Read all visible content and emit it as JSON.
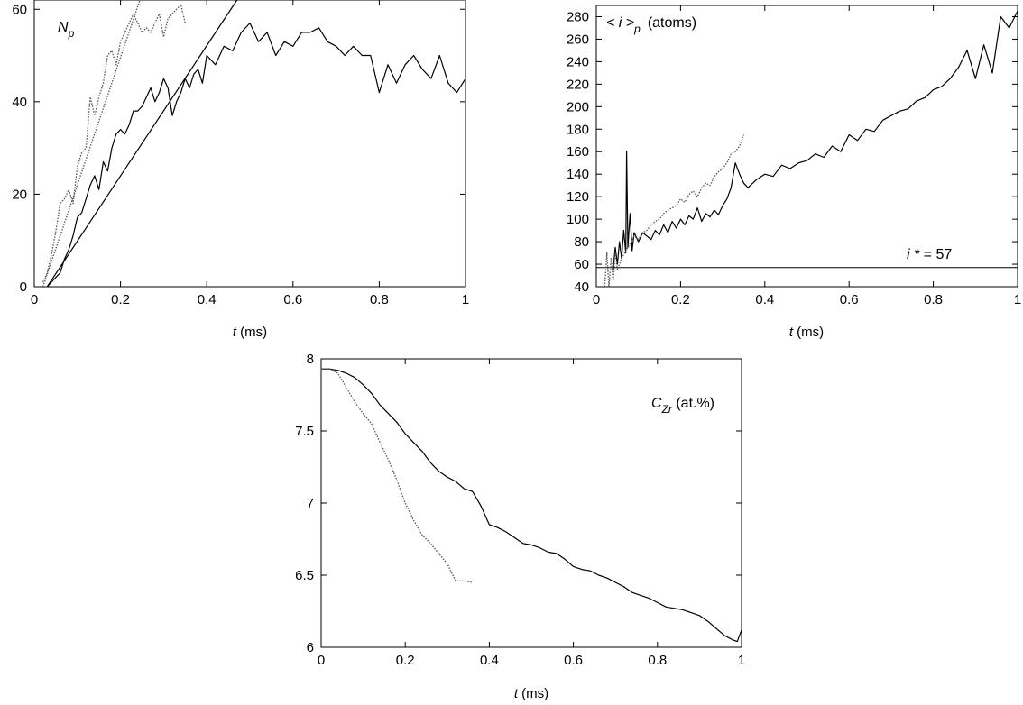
{
  "chart_data": [
    {
      "type": "line",
      "title": "",
      "panel_label_main": "N",
      "panel_label_sub": "p",
      "xlabel_var": "t",
      "xlabel_unit": " (ms)",
      "ylabel": "",
      "xlim": [
        0,
        1
      ],
      "ylim": [
        0,
        62
      ],
      "xticks": [
        "0",
        "0.2",
        "0.4",
        "0.6",
        "0.8",
        "1"
      ],
      "yticks": [
        "0",
        "20",
        "40",
        "60"
      ],
      "series": [
        {
          "style": "solid-noisy",
          "x": [
            0.03,
            0.04,
            0.05,
            0.06,
            0.07,
            0.08,
            0.09,
            0.1,
            0.11,
            0.12,
            0.13,
            0.14,
            0.15,
            0.16,
            0.17,
            0.18,
            0.19,
            0.2,
            0.21,
            0.22,
            0.23,
            0.24,
            0.25,
            0.26,
            0.27,
            0.28,
            0.29,
            0.3,
            0.31,
            0.32,
            0.33,
            0.34,
            0.35,
            0.36,
            0.37,
            0.38,
            0.39,
            0.4,
            0.42,
            0.44,
            0.46,
            0.48,
            0.5,
            0.52,
            0.54,
            0.56,
            0.58,
            0.6,
            0.62,
            0.64,
            0.66,
            0.68,
            0.7,
            0.72,
            0.74,
            0.76,
            0.78,
            0.8,
            0.82,
            0.84,
            0.86,
            0.88,
            0.9,
            0.92,
            0.94,
            0.96,
            0.98,
            1.0
          ],
          "y": [
            0,
            1,
            2,
            3,
            6,
            8,
            11,
            15,
            16,
            19,
            22,
            24,
            21,
            27,
            25,
            30,
            33,
            34,
            33,
            35,
            38,
            38,
            39,
            41,
            43,
            40,
            42,
            45,
            43,
            37,
            40,
            42,
            45,
            43,
            46,
            47,
            44,
            50,
            48,
            52,
            51,
            55,
            57,
            53,
            55,
            50,
            53,
            52,
            55,
            55,
            56,
            53,
            52,
            50,
            52,
            50,
            50,
            42,
            48,
            44,
            48,
            50,
            47,
            45,
            50,
            44,
            42,
            45
          ]
        },
        {
          "style": "dotted-noisy",
          "x": [
            0.02,
            0.03,
            0.04,
            0.05,
            0.06,
            0.07,
            0.08,
            0.09,
            0.1,
            0.11,
            0.12,
            0.13,
            0.14,
            0.15,
            0.16,
            0.17,
            0.18,
            0.19,
            0.2,
            0.21,
            0.22,
            0.23,
            0.24,
            0.25,
            0.26,
            0.27,
            0.28,
            0.29,
            0.3,
            0.31,
            0.32,
            0.33,
            0.34,
            0.35
          ],
          "y": [
            1,
            3,
            7,
            12,
            18,
            19,
            21,
            18,
            26,
            29,
            30,
            41,
            37,
            41,
            44,
            50,
            51,
            48,
            53,
            55,
            57,
            59,
            57,
            55,
            56,
            55,
            57,
            59,
            54,
            58,
            59,
            60,
            61,
            57
          ]
        },
        {
          "style": "solid-fit",
          "x": [
            0.03,
            0.47
          ],
          "y": [
            0,
            62
          ]
        },
        {
          "style": "dotted-fit",
          "x": [
            0.02,
            0.245
          ],
          "y": [
            0,
            62
          ]
        }
      ]
    },
    {
      "type": "line",
      "title": "",
      "panel_label": "< i >",
      "panel_label_sub": "p",
      "panel_label_unit": "(atoms)",
      "xlabel_var": "t",
      "xlabel_unit": " (ms)",
      "ylabel": "",
      "xlim": [
        0,
        1
      ],
      "ylim": [
        40,
        290
      ],
      "xticks": [
        "0",
        "0.2",
        "0.4",
        "0.6",
        "0.8",
        "1"
      ],
      "yticks": [
        "40",
        "60",
        "80",
        "100",
        "120",
        "140",
        "160",
        "180",
        "200",
        "220",
        "240",
        "260",
        "280"
      ],
      "annotation_var": "i *",
      "annotation_eq": " = 57",
      "reference_line": {
        "y": 57
      },
      "series": [
        {
          "style": "solid-noisy",
          "x": [
            0.04,
            0.045,
            0.05,
            0.055,
            0.06,
            0.065,
            0.07,
            0.072,
            0.075,
            0.08,
            0.085,
            0.09,
            0.1,
            0.11,
            0.12,
            0.13,
            0.14,
            0.15,
            0.16,
            0.17,
            0.18,
            0.19,
            0.2,
            0.21,
            0.22,
            0.23,
            0.24,
            0.25,
            0.26,
            0.27,
            0.28,
            0.29,
            0.3,
            0.31,
            0.32,
            0.33,
            0.34,
            0.35,
            0.36,
            0.38,
            0.4,
            0.42,
            0.44,
            0.46,
            0.48,
            0.5,
            0.52,
            0.54,
            0.56,
            0.58,
            0.6,
            0.62,
            0.64,
            0.66,
            0.68,
            0.7,
            0.72,
            0.74,
            0.76,
            0.78,
            0.8,
            0.82,
            0.84,
            0.86,
            0.88,
            0.9,
            0.92,
            0.94,
            0.96,
            0.98,
            1.0
          ],
          "y": [
            55,
            75,
            60,
            80,
            65,
            90,
            70,
            160,
            75,
            105,
            72,
            88,
            80,
            88,
            85,
            82,
            90,
            86,
            95,
            88,
            98,
            92,
            100,
            95,
            103,
            100,
            110,
            98,
            105,
            102,
            108,
            104,
            112,
            118,
            128,
            150,
            140,
            132,
            128,
            135,
            140,
            138,
            148,
            145,
            150,
            152,
            158,
            155,
            165,
            160,
            175,
            170,
            180,
            178,
            188,
            192,
            196,
            198,
            205,
            208,
            215,
            218,
            225,
            235,
            250,
            225,
            255,
            230,
            280,
            270,
            285
          ]
        },
        {
          "style": "dotted-noisy",
          "x": [
            0.02,
            0.025,
            0.03,
            0.035,
            0.04,
            0.045,
            0.05,
            0.06,
            0.07,
            0.08,
            0.09,
            0.1,
            0.11,
            0.12,
            0.13,
            0.14,
            0.15,
            0.16,
            0.17,
            0.18,
            0.19,
            0.2,
            0.21,
            0.22,
            0.23,
            0.24,
            0.25,
            0.26,
            0.27,
            0.28,
            0.29,
            0.3,
            0.31,
            0.32,
            0.33,
            0.34,
            0.35
          ],
          "y": [
            40,
            70,
            40,
            65,
            45,
            70,
            55,
            65,
            72,
            78,
            85,
            82,
            88,
            90,
            95,
            98,
            100,
            105,
            108,
            110,
            112,
            118,
            115,
            122,
            125,
            120,
            128,
            132,
            130,
            138,
            142,
            145,
            150,
            158,
            160,
            165,
            175
          ]
        }
      ]
    },
    {
      "type": "line",
      "title": "",
      "panel_label_main": "C",
      "panel_label_sub": "Zr",
      "panel_label_unit": " (at.%)",
      "xlabel_var": "t",
      "xlabel_unit": " (ms)",
      "ylabel": "",
      "xlim": [
        0,
        1
      ],
      "ylim": [
        6,
        8
      ],
      "xticks": [
        "0",
        "0.2",
        "0.4",
        "0.6",
        "0.8",
        "1"
      ],
      "yticks": [
        "6",
        "6.5",
        "7",
        "7.5",
        "8"
      ],
      "series": [
        {
          "style": "solid-noisy",
          "x": [
            0.0,
            0.02,
            0.04,
            0.06,
            0.08,
            0.1,
            0.12,
            0.14,
            0.16,
            0.18,
            0.2,
            0.22,
            0.24,
            0.26,
            0.28,
            0.3,
            0.32,
            0.34,
            0.36,
            0.38,
            0.4,
            0.42,
            0.44,
            0.46,
            0.48,
            0.5,
            0.52,
            0.54,
            0.56,
            0.58,
            0.6,
            0.62,
            0.64,
            0.66,
            0.68,
            0.7,
            0.72,
            0.74,
            0.76,
            0.78,
            0.8,
            0.82,
            0.84,
            0.86,
            0.88,
            0.9,
            0.92,
            0.94,
            0.96,
            0.98,
            0.99,
            1.0
          ],
          "y": [
            7.93,
            7.93,
            7.92,
            7.9,
            7.87,
            7.82,
            7.76,
            7.68,
            7.62,
            7.56,
            7.48,
            7.42,
            7.36,
            7.28,
            7.22,
            7.18,
            7.15,
            7.1,
            7.08,
            6.98,
            6.85,
            6.83,
            6.8,
            6.76,
            6.72,
            6.71,
            6.69,
            6.66,
            6.65,
            6.61,
            6.56,
            6.54,
            6.53,
            6.5,
            6.48,
            6.45,
            6.42,
            6.38,
            6.36,
            6.34,
            6.31,
            6.28,
            6.27,
            6.26,
            6.24,
            6.22,
            6.18,
            6.13,
            6.08,
            6.05,
            6.04,
            6.12
          ]
        },
        {
          "style": "dotted-noisy",
          "x": [
            0.0,
            0.02,
            0.04,
            0.06,
            0.08,
            0.1,
            0.12,
            0.14,
            0.16,
            0.18,
            0.2,
            0.22,
            0.24,
            0.26,
            0.28,
            0.3,
            0.32,
            0.34,
            0.36
          ],
          "y": [
            7.93,
            7.93,
            7.9,
            7.8,
            7.7,
            7.62,
            7.55,
            7.42,
            7.3,
            7.16,
            7.0,
            6.88,
            6.78,
            6.72,
            6.65,
            6.58,
            6.46,
            6.46,
            6.45
          ]
        }
      ]
    }
  ]
}
